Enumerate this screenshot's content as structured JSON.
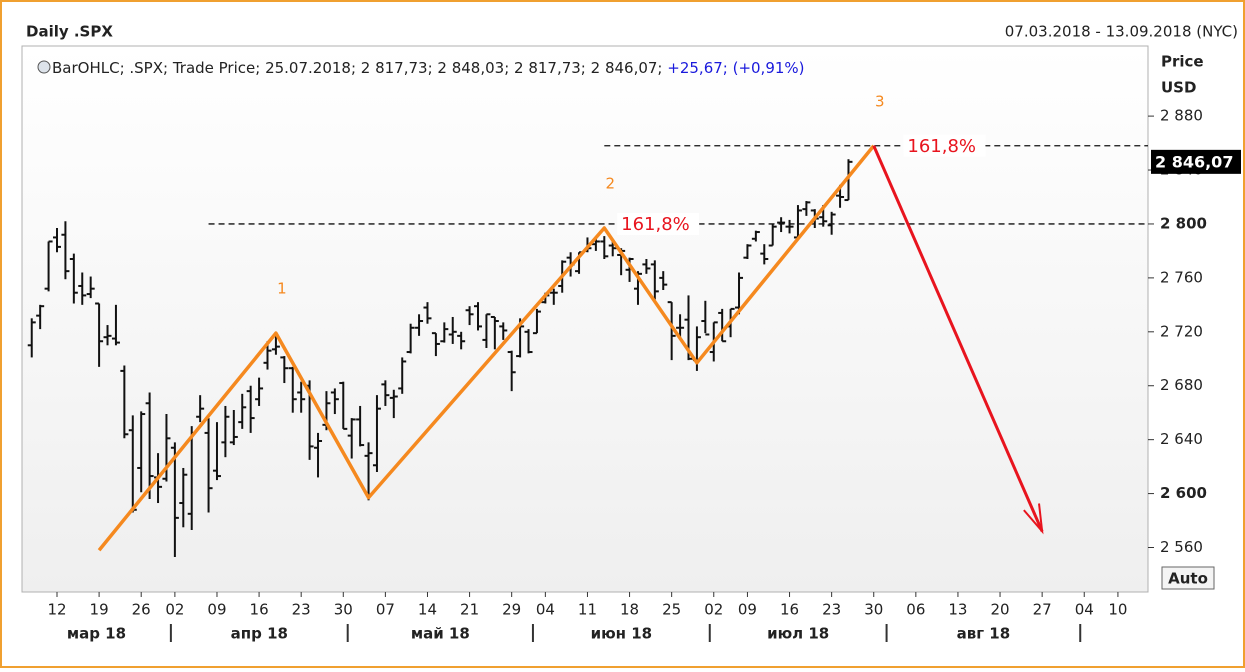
{
  "chart_data": {
    "type": "ohlc",
    "title": "Daily .SPX",
    "date_range": "07.03.2018 - 13.09.2018 (NYC)",
    "legend_text": "BarOHLC; .SPX; Trade Price; 25.07.2018; 2 817,73; 2 848,03; 2 817,73; 2 846,07;",
    "legend_change": "+25,67; (+0,91%)",
    "axis_title": "Price",
    "axis_unit": "USD",
    "auto_button": "Auto",
    "color": "#111111",
    "ylim": [
      2527,
      2932
    ],
    "yticks": [
      {
        "value": 2560,
        "label": "2 560"
      },
      {
        "value": 2600,
        "label": "2 600"
      },
      {
        "value": 2640,
        "label": "2 640"
      },
      {
        "value": 2680,
        "label": "2 680"
      },
      {
        "value": 2720,
        "label": "2 720"
      },
      {
        "value": 2760,
        "label": "2 760"
      },
      {
        "value": 2800,
        "label": "2 800"
      },
      {
        "value": 2840,
        "label": "2 840"
      },
      {
        "value": 2880,
        "label": "2 880"
      }
    ],
    "xticks": [
      {
        "value": "2018-03-12",
        "label": "12"
      },
      {
        "value": "2018-03-19",
        "label": "19"
      },
      {
        "value": "2018-03-26",
        "label": "26"
      },
      {
        "value": "2018-04-02",
        "label": "02"
      },
      {
        "value": "2018-04-09",
        "label": "09"
      },
      {
        "value": "2018-04-16",
        "label": "16"
      },
      {
        "value": "2018-04-23",
        "label": "23"
      },
      {
        "value": "2018-04-30",
        "label": "30"
      },
      {
        "value": "2018-05-07",
        "label": "07"
      },
      {
        "value": "2018-05-14",
        "label": "14"
      },
      {
        "value": "2018-05-21",
        "label": "21"
      },
      {
        "value": "2018-05-29",
        "label": "29"
      },
      {
        "value": "2018-06-04",
        "label": "04"
      },
      {
        "value": "2018-06-11",
        "label": "11"
      },
      {
        "value": "2018-06-18",
        "label": "18"
      },
      {
        "value": "2018-06-25",
        "label": "25"
      },
      {
        "value": "2018-07-02",
        "label": "02"
      },
      {
        "value": "2018-07-09",
        "label": "09"
      },
      {
        "value": "2018-07-16",
        "label": "16"
      },
      {
        "value": "2018-07-23",
        "label": "23"
      },
      {
        "value": "2018-07-30",
        "label": "30"
      },
      {
        "value": "2018-08-06",
        "label": "06"
      },
      {
        "value": "2018-08-13",
        "label": "13"
      },
      {
        "value": "2018-08-20",
        "label": "20"
      },
      {
        "value": "2018-08-27",
        "label": "27"
      },
      {
        "value": "2018-09-04",
        "label": "04"
      },
      {
        "value": "2018-09-10",
        "label": "10"
      }
    ],
    "months": [
      {
        "value": "2018-03",
        "label": "мар 18"
      },
      {
        "value": "2018-04",
        "label": "апр 18"
      },
      {
        "value": "2018-05",
        "label": "май 18"
      },
      {
        "value": "2018-06",
        "label": "июн 18"
      },
      {
        "value": "2018-07",
        "label": "июл 18"
      },
      {
        "value": "2018-08",
        "label": "авг 18"
      }
    ],
    "x": [
      "2018-03-07",
      "2018-03-08",
      "2018-03-09",
      "2018-03-12",
      "2018-03-13",
      "2018-03-14",
      "2018-03-15",
      "2018-03-16",
      "2018-03-19",
      "2018-03-20",
      "2018-03-21",
      "2018-03-22",
      "2018-03-23",
      "2018-03-26",
      "2018-03-27",
      "2018-03-28",
      "2018-03-29",
      "2018-04-02",
      "2018-04-03",
      "2018-04-04",
      "2018-04-05",
      "2018-04-06",
      "2018-04-09",
      "2018-04-10",
      "2018-04-11",
      "2018-04-12",
      "2018-04-13",
      "2018-04-16",
      "2018-04-17",
      "2018-04-18",
      "2018-04-19",
      "2018-04-20",
      "2018-04-23",
      "2018-04-24",
      "2018-04-25",
      "2018-04-26",
      "2018-04-27",
      "2018-04-30",
      "2018-05-01",
      "2018-05-02",
      "2018-05-03",
      "2018-05-04",
      "2018-05-07",
      "2018-05-08",
      "2018-05-09",
      "2018-05-10",
      "2018-05-11",
      "2018-05-14",
      "2018-05-15",
      "2018-05-16",
      "2018-05-17",
      "2018-05-18",
      "2018-05-21",
      "2018-05-22",
      "2018-05-23",
      "2018-05-24",
      "2018-05-25",
      "2018-05-29",
      "2018-05-30",
      "2018-05-31",
      "2018-06-01",
      "2018-06-04",
      "2018-06-05",
      "2018-06-06",
      "2018-06-07",
      "2018-06-08",
      "2018-06-11",
      "2018-06-12",
      "2018-06-13",
      "2018-06-14",
      "2018-06-15",
      "2018-06-18",
      "2018-06-19",
      "2018-06-20",
      "2018-06-21",
      "2018-06-22",
      "2018-06-25",
      "2018-06-26",
      "2018-06-27",
      "2018-06-28",
      "2018-06-29",
      "2018-07-02",
      "2018-07-03",
      "2018-07-05",
      "2018-07-06",
      "2018-07-09",
      "2018-07-10",
      "2018-07-11",
      "2018-07-12",
      "2018-07-13",
      "2018-07-16",
      "2018-07-17",
      "2018-07-18",
      "2018-07-19",
      "2018-07-20",
      "2018-07-23",
      "2018-07-24",
      "2018-07-25"
    ],
    "open": [
      2710,
      2732,
      2752,
      2790,
      2792,
      2774,
      2754,
      2748,
      2741,
      2716,
      2715,
      2691,
      2647,
      2619,
      2667,
      2612,
      2611,
      2634,
      2593,
      2585,
      2657,
      2645,
      2617,
      2638,
      2638,
      2653,
      2676,
      2670,
      2697,
      2707,
      2701,
      2693,
      2675,
      2680,
      2634,
      2651,
      2675,
      2682,
      2643,
      2655,
      2628,
      2621,
      2681,
      2671,
      2678,
      2705,
      2723,
      2738,
      2719,
      2713,
      2718,
      2717,
      2736,
      2739,
      2714,
      2731,
      2724,
      2705,
      2702,
      2720,
      2719,
      2742,
      2749,
      2754,
      2775,
      2765,
      2780,
      2785,
      2787,
      2784,
      2777,
      2766,
      2752,
      2770,
      2770,
      2760,
      2742,
      2723,
      2729,
      2699,
      2728,
      2705,
      2734,
      2724,
      2738,
      2775,
      2789,
      2778,
      2784,
      2801,
      2798,
      2790,
      2811,
      2810,
      2805,
      2799,
      2821,
      2817.73
    ],
    "high": [
      2730,
      2740,
      2787,
      2797,
      2802,
      2778,
      2764,
      2761,
      2741,
      2725,
      2740,
      2695,
      2658,
      2661,
      2675,
      2630,
      2659,
      2638,
      2619,
      2650,
      2673,
      2656,
      2653,
      2665,
      2662,
      2674,
      2680,
      2686,
      2713,
      2717,
      2702,
      2694,
      2683,
      2684,
      2645,
      2676,
      2678,
      2683,
      2656,
      2665,
      2638,
      2673,
      2684,
      2677,
      2701,
      2726,
      2733,
      2742,
      2719,
      2727,
      2731,
      2720,
      2739,
      2742,
      2733,
      2731,
      2727,
      2706,
      2730,
      2722,
      2737,
      2749,
      2752,
      2773,
      2779,
      2779,
      2790,
      2790,
      2791,
      2788,
      2782,
      2775,
      2765,
      2774,
      2773,
      2765,
      2742,
      2733,
      2747,
      2724,
      2743,
      2727,
      2737,
      2737,
      2764,
      2785,
      2795,
      2785,
      2800,
      2805,
      2803,
      2814,
      2817,
      2811,
      2814,
      2809,
      2829,
      2848.03
    ],
    "low": [
      2701,
      2722,
      2750,
      2779,
      2759,
      2741,
      2740,
      2745,
      2694,
      2710,
      2710,
      2641,
      2586,
      2601,
      2596,
      2593,
      2609,
      2553,
      2575,
      2573,
      2653,
      2586,
      2610,
      2627,
      2636,
      2648,
      2645,
      2665,
      2692,
      2703,
      2682,
      2660,
      2660,
      2625,
      2612,
      2647,
      2659,
      2648,
      2626,
      2635,
      2595,
      2616,
      2665,
      2656,
      2674,
      2704,
      2717,
      2726,
      2702,
      2712,
      2711,
      2707,
      2725,
      2721,
      2708,
      2707,
      2714,
      2676,
      2701,
      2704,
      2719,
      2741,
      2740,
      2749,
      2761,
      2763,
      2779,
      2780,
      2774,
      2776,
      2762,
      2757,
      2740,
      2763,
      2744,
      2751,
      2699,
      2715,
      2699,
      2691,
      2719,
      2698,
      2713,
      2716,
      2733,
      2774,
      2787,
      2770,
      2784,
      2794,
      2793,
      2789,
      2806,
      2797,
      2798,
      2792,
      2812,
      2817.73
    ],
    "close": [
      2727,
      2739,
      2787,
      2783,
      2765,
      2749,
      2747,
      2752,
      2713,
      2717,
      2712,
      2644,
      2588,
      2659,
      2613,
      2605,
      2641,
      2582,
      2614,
      2645,
      2663,
      2604,
      2613,
      2657,
      2642,
      2664,
      2656,
      2678,
      2706,
      2709,
      2693,
      2670,
      2670,
      2635,
      2639,
      2667,
      2670,
      2648,
      2655,
      2636,
      2630,
      2663,
      2673,
      2672,
      2698,
      2723,
      2728,
      2730,
      2711,
      2722,
      2720,
      2713,
      2733,
      2724,
      2733,
      2728,
      2721,
      2690,
      2724,
      2705,
      2735,
      2747,
      2749,
      2772,
      2770,
      2779,
      2782,
      2787,
      2776,
      2782,
      2780,
      2774,
      2763,
      2767,
      2750,
      2755,
      2717,
      2723,
      2700,
      2716,
      2718,
      2727,
      2713,
      2737,
      2760,
      2784,
      2794,
      2774,
      2798,
      2801,
      2798,
      2810,
      2816,
      2804,
      2802,
      2807,
      2820,
      2846.07
    ],
    "last_price": {
      "value": 2846.07,
      "label": "2 846,07"
    },
    "zigzag": {
      "color": "#f5891f",
      "x": [
        "2018-03-19",
        "2018-04-18",
        "2018-05-03",
        "2018-06-13",
        "2018-06-28",
        "2018-07-30"
      ],
      "values": [
        2558,
        2719,
        2597,
        2797,
        2697,
        2858
      ],
      "labels": [
        "1",
        "2",
        "3"
      ]
    },
    "forecast": {
      "color": "#e8141e",
      "x": [
        "2018-07-30",
        "2018-08-27"
      ],
      "values": [
        2858,
        2572
      ]
    },
    "levels": [
      {
        "value": 2800,
        "label": "161,8%",
        "from": "2018-04-06",
        "label_at": "2018-06-15"
      },
      {
        "value": 2858,
        "label": "161,8%",
        "from": "2018-06-13",
        "label_at": "2018-08-03"
      }
    ]
  }
}
